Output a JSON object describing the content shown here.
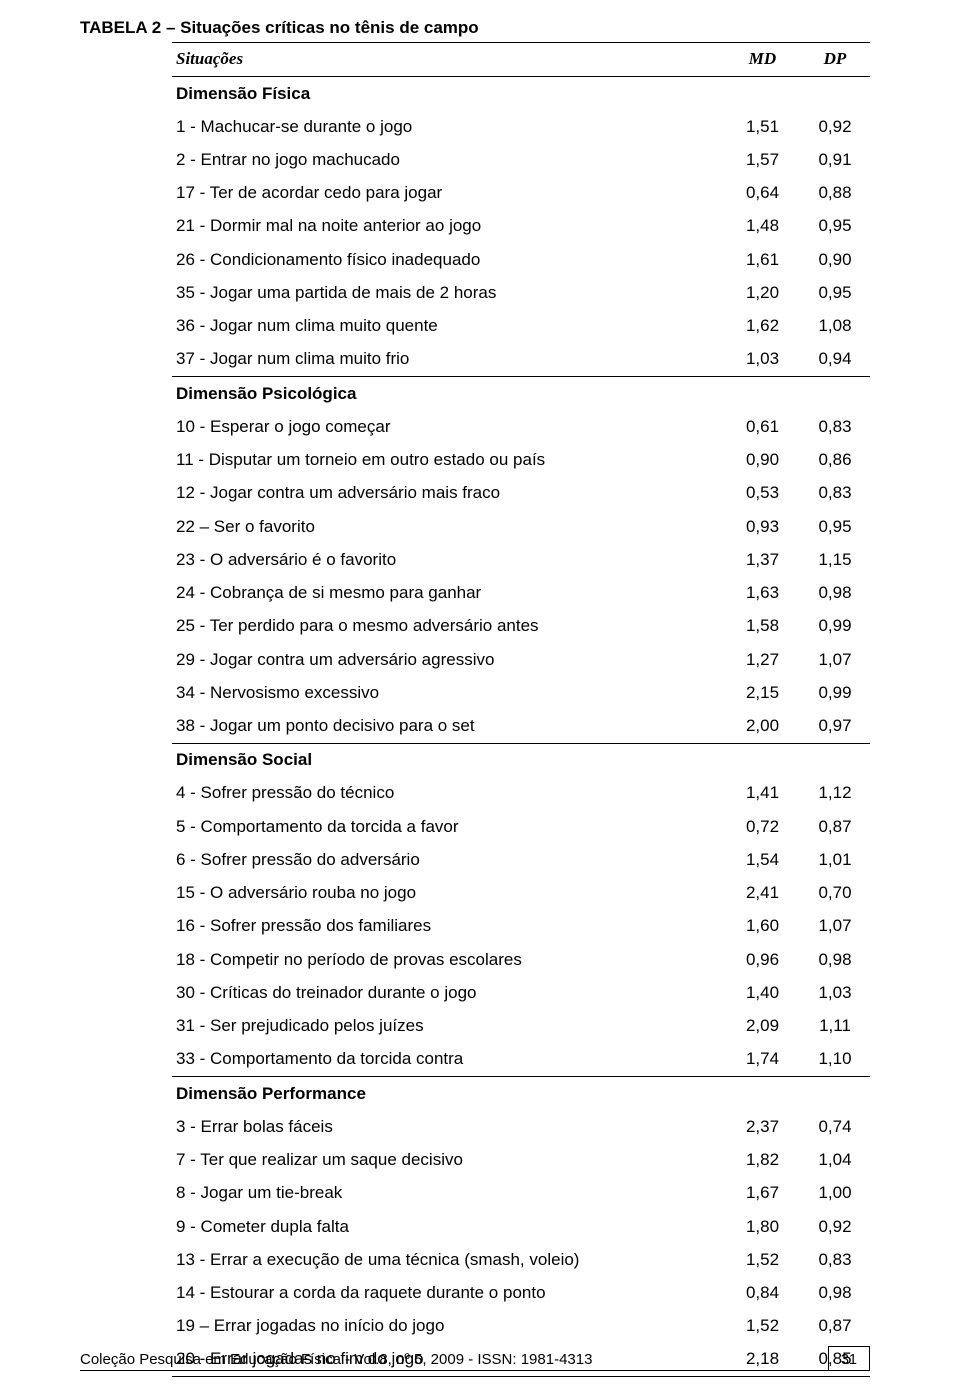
{
  "title": "TABELA 2 – Situações críticas no tênis de campo",
  "header": {
    "col1": "Situações",
    "col2": "MD",
    "col3": "DP"
  },
  "sections": [
    {
      "name": "Dimensão Física",
      "rows": [
        {
          "label": "1 - Machucar-se durante o jogo",
          "md": "1,51",
          "dp": "0,92"
        },
        {
          "label": "2 - Entrar no jogo machucado",
          "md": "1,57",
          "dp": "0,91"
        },
        {
          "label": "17 - Ter de acordar cedo para jogar",
          "md": "0,64",
          "dp": "0,88"
        },
        {
          "label": "21 - Dormir mal na noite anterior ao jogo",
          "md": "1,48",
          "dp": "0,95"
        },
        {
          "label": "26 - Condicionamento físico inadequado",
          "md": "1,61",
          "dp": "0,90"
        },
        {
          "label": "35 - Jogar uma partida de mais de 2 horas",
          "md": "1,20",
          "dp": "0,95"
        },
        {
          "label": "36 - Jogar num clima muito quente",
          "md": "1,62",
          "dp": "1,08"
        },
        {
          "label": "37 - Jogar num clima muito frio",
          "md": "1,03",
          "dp": "0,94"
        }
      ]
    },
    {
      "name": "Dimensão Psicológica",
      "rows": [
        {
          "label": "10 - Esperar o jogo começar",
          "md": "0,61",
          "dp": "0,83"
        },
        {
          "label": "11 - Disputar um torneio em outro estado ou país",
          "md": "0,90",
          "dp": "0,86"
        },
        {
          "label": "12 - Jogar contra um adversário mais fraco",
          "md": "0,53",
          "dp": "0,83"
        },
        {
          "label": "22 – Ser o favorito",
          "md": "0,93",
          "dp": "0,95"
        },
        {
          "label": "23 - O adversário é o favorito",
          "md": "1,37",
          "dp": "1,15"
        },
        {
          "label": "24 - Cobrança de si mesmo para ganhar",
          "md": "1,63",
          "dp": "0,98"
        },
        {
          "label": "25 - Ter perdido para o mesmo adversário antes",
          "md": "1,58",
          "dp": "0,99"
        },
        {
          "label": "29 - Jogar contra um adversário agressivo",
          "md": "1,27",
          "dp": "1,07"
        },
        {
          "label": "34 - Nervosismo excessivo",
          "md": "2,15",
          "dp": "0,99"
        },
        {
          "label": "38 - Jogar um ponto decisivo para o set",
          "md": "2,00",
          "dp": "0,97"
        }
      ]
    },
    {
      "name": "Dimensão Social",
      "rows": [
        {
          "label": "4 - Sofrer pressão do técnico",
          "md": "1,41",
          "dp": "1,12"
        },
        {
          "label": "5 - Comportamento da torcida a favor",
          "md": "0,72",
          "dp": "0,87"
        },
        {
          "label": "6 - Sofrer pressão do adversário",
          "md": "1,54",
          "dp": "1,01"
        },
        {
          "label": "15 - O adversário rouba no jogo",
          "md": "2,41",
          "dp": "0,70"
        },
        {
          "label": "16 - Sofrer pressão dos familiares",
          "md": "1,60",
          "dp": "1,07"
        },
        {
          "label": "18 - Competir no período de provas escolares",
          "md": "0,96",
          "dp": "0,98"
        },
        {
          "label": "30 - Críticas do treinador durante o jogo",
          "md": "1,40",
          "dp": "1,03"
        },
        {
          "label": "31 - Ser prejudicado pelos juízes",
          "md": "2,09",
          "dp": "1,11"
        },
        {
          "label": "33 - Comportamento da torcida contra",
          "md": "1,74",
          "dp": "1,10"
        }
      ]
    },
    {
      "name": "Dimensão Performance",
      "rows": [
        {
          "label": "3 - Errar bolas fáceis",
          "md": "2,37",
          "dp": "0,74"
        },
        {
          "label": "7 - Ter que realizar um saque decisivo",
          "md": "1,82",
          "dp": "1,04"
        },
        {
          "label": "8 - Jogar um tie-break",
          "md": "1,67",
          "dp": "1,00"
        },
        {
          "label": "9 - Cometer dupla falta",
          "md": "1,80",
          "dp": "0,92"
        },
        {
          "label": "13 - Errar a execução de uma técnica (smash, voleio)",
          "md": "1,52",
          "dp": "0,83"
        },
        {
          "label": "14 - Estourar a corda da raquete durante o ponto",
          "md": "0,84",
          "dp": "0,98"
        },
        {
          "label": "19 – Errar jogadas no início do jogo",
          "md": "1,52",
          "dp": "0,87"
        },
        {
          "label": "20 - Errar jogadas no fim do jogo",
          "md": "2,18",
          "dp": "0,85"
        }
      ]
    }
  ],
  "footer": "Coleção Pesquisa em Educação Física - Vol.8, nº 5, 2009  -  ISSN: 1981-4313",
  "page": "31",
  "colors": {
    "text": "#000000",
    "bg": "#ffffff",
    "rule": "#000000"
  },
  "fontsize": {
    "body": 17,
    "footer": 15,
    "page": 14.5
  }
}
